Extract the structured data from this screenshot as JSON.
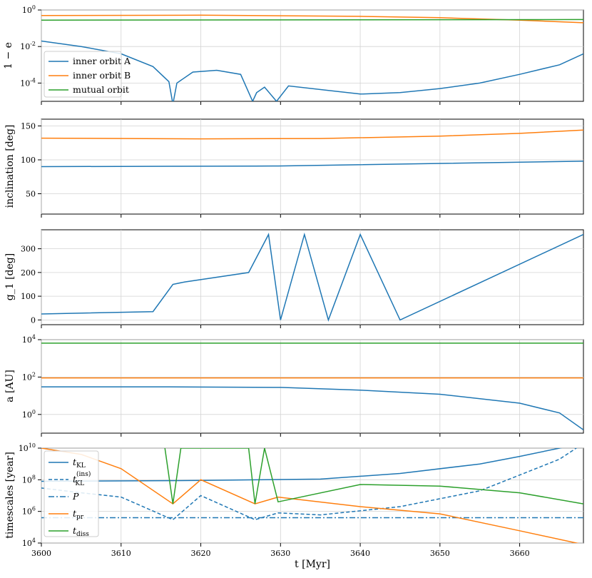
{
  "chart_data": [
    {
      "type": "line",
      "ylabel": "1 − e",
      "yscale": "log",
      "ylim": [
        1e-05,
        1
      ],
      "yticks": [
        {
          "v": 1,
          "label": "10^0"
        },
        {
          "v": 0.01,
          "label": "10^-2"
        },
        {
          "v": 0.0001,
          "label": "10^-4"
        }
      ],
      "legend": {
        "position": "lower-left",
        "entries": [
          "inner orbit A",
          "inner orbit B",
          "mutual orbit"
        ]
      },
      "grid": true,
      "series": [
        {
          "name": "inner orbit A",
          "color": "#1f77b4",
          "x": [
            3600,
            3605,
            3610,
            3614,
            3616,
            3616.5,
            3617,
            3619,
            3622,
            3625,
            3626.5,
            3627,
            3628,
            3629.5,
            3631,
            3640,
            3645,
            3650,
            3655,
            3660,
            3665,
            3668
          ],
          "y": [
            0.02,
            0.01,
            0.004,
            0.0008,
            0.00012,
            7e-06,
            0.0001,
            0.0004,
            0.0005,
            0.0003,
            1e-05,
            3e-05,
            6e-05,
            1e-05,
            7e-05,
            2.5e-05,
            3e-05,
            5e-05,
            0.0001,
            0.0003,
            0.001,
            0.004
          ]
        },
        {
          "name": "inner orbit B",
          "color": "#ff7f0e",
          "x": [
            3600,
            3620,
            3640,
            3650,
            3660,
            3668
          ],
          "y": [
            0.5,
            0.52,
            0.45,
            0.38,
            0.28,
            0.2
          ]
        },
        {
          "name": "mutual orbit",
          "color": "#2ca02c",
          "x": [
            3600,
            3668
          ],
          "y": [
            0.28,
            0.3
          ]
        }
      ]
    },
    {
      "type": "line",
      "ylabel": "inclination [deg]",
      "ylim": [
        20,
        160
      ],
      "yticks": [
        {
          "v": 50,
          "label": "50"
        },
        {
          "v": 100,
          "label": "100"
        },
        {
          "v": 150,
          "label": "150"
        }
      ],
      "grid": true,
      "series": [
        {
          "name": "inner orbit A",
          "color": "#1f77b4",
          "x": [
            3600,
            3616.5,
            3626.8,
            3629.7,
            3668
          ],
          "y": [
            90,
            90.5,
            90.8,
            91,
            98
          ]
        },
        {
          "name": "inner orbit B",
          "color": "#ff7f0e",
          "x": [
            3600,
            3620,
            3635,
            3650,
            3660,
            3668
          ],
          "y": [
            132,
            131,
            131.5,
            135,
            139,
            144
          ]
        }
      ]
    },
    {
      "type": "line",
      "ylabel": "g_1 [deg]",
      "ylim": [
        -20,
        380
      ],
      "yticks": [
        {
          "v": 0,
          "label": "0"
        },
        {
          "v": 100,
          "label": "100"
        },
        {
          "v": 200,
          "label": "200"
        },
        {
          "v": 300,
          "label": "300"
        }
      ],
      "grid": true,
      "series": [
        {
          "name": "inner orbit A",
          "color": "#1f77b4",
          "x": [
            3600,
            3614,
            3616.5,
            3618,
            3626,
            3628.5,
            3630,
            3633,
            3636,
            3640,
            3645,
            3668
          ],
          "y": [
            25,
            35,
            150,
            160,
            200,
            360,
            0,
            360,
            0,
            360,
            0,
            360
          ]
        }
      ]
    },
    {
      "type": "line",
      "ylabel": "a [AU]",
      "yscale": "log",
      "ylim": [
        0.1,
        10000
      ],
      "yticks": [
        {
          "v": 10000,
          "label": "10^4"
        },
        {
          "v": 100,
          "label": "10^2"
        },
        {
          "v": 1,
          "label": "10^0"
        }
      ],
      "grid": true,
      "series": [
        {
          "name": "inner orbit A",
          "color": "#1f77b4",
          "x": [
            3600,
            3616,
            3630,
            3640,
            3650,
            3660,
            3665,
            3668
          ],
          "y": [
            30,
            30,
            28,
            20,
            12,
            4,
            1.2,
            0.15
          ]
        },
        {
          "name": "inner orbit B",
          "color": "#ff7f0e",
          "x": [
            3600,
            3668
          ],
          "y": [
            90,
            90
          ]
        },
        {
          "name": "mutual orbit",
          "color": "#2ca02c",
          "x": [
            3600,
            3668
          ],
          "y": [
            6500,
            6500
          ]
        }
      ]
    },
    {
      "type": "line",
      "xlabel": "t [Myr]",
      "ylabel": "timescales [year]",
      "yscale": "log",
      "xlim": [
        3600,
        3668
      ],
      "xticks": [
        3600,
        3610,
        3620,
        3630,
        3640,
        3650,
        3660
      ],
      "ylim": [
        10000,
        10000000000
      ],
      "yticks": [
        {
          "v": 10000000000,
          "label": "10^10"
        },
        {
          "v": 100000000,
          "label": "10^8"
        },
        {
          "v": 1000000,
          "label": "10^6"
        },
        {
          "v": 10000,
          "label": "10^4"
        }
      ],
      "legend": {
        "position": "lower-left",
        "entries": [
          "t_KL",
          "t_KL^(ins)",
          "P",
          "t_pr",
          "t_diss"
        ]
      },
      "grid": true,
      "series": [
        {
          "name": "t_KL",
          "label_main": "t",
          "label_sub": "KL",
          "label_sup": "",
          "color": "#1f77b4",
          "dash": "solid",
          "x": [
            3600,
            3620,
            3635,
            3645,
            3655,
            3660,
            3665,
            3668
          ],
          "y": [
            80000000,
            90000000,
            110000000,
            250000000,
            1000000000,
            3000000000,
            10000000000,
            20000000000
          ]
        },
        {
          "name": "t_KL^(ins)",
          "label_main": "t",
          "label_sub": "KL",
          "label_sup": "(ins)",
          "color": "#1f77b4",
          "dash": "dashed",
          "x": [
            3600,
            3605,
            3610,
            3616.5,
            3620,
            3626.8,
            3629.7,
            3635,
            3645,
            3655,
            3660,
            3665,
            3668
          ],
          "y": [
            30000000,
            15000000,
            8000000,
            300000,
            10000000,
            300000,
            800000,
            600000,
            2000000,
            20000000,
            200000000,
            2000000000,
            20000000000
          ]
        },
        {
          "name": "P",
          "label_main": "P",
          "label_sub": "",
          "label_sup": "",
          "color": "#1f77b4",
          "dash": "dashdot",
          "x": [
            3600,
            3668
          ],
          "y": [
            400000,
            400000
          ]
        },
        {
          "name": "t_pr",
          "label_main": "t",
          "label_sub": "pr",
          "label_sup": "",
          "color": "#ff7f0e",
          "dash": "solid",
          "x": [
            3600,
            3605,
            3610,
            3616.5,
            3620,
            3626.8,
            3629.7,
            3640,
            3650,
            3660,
            3668
          ],
          "y": [
            10000000000,
            4000000000,
            500000000,
            3000000,
            100000000,
            3000000,
            8000000,
            2000000,
            700000,
            60000,
            8000
          ]
        },
        {
          "name": "t_diss",
          "label_main": "t",
          "label_sub": "diss",
          "label_sup": "",
          "color": "#2ca02c",
          "dash": "solid",
          "x": [
            3615.5,
            3616.5,
            3617.5,
            3626,
            3626.8,
            3628,
            3629.7,
            3640,
            3650,
            3660,
            3668
          ],
          "y": [
            10000000000,
            3000000,
            10000000000,
            10000000000,
            3000000,
            10000000000,
            4000000,
            50000000,
            40000000,
            15000000,
            3000000
          ]
        }
      ]
    }
  ]
}
